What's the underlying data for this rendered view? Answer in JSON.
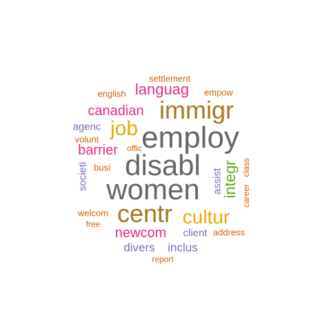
{
  "colors": {
    "gray": "#666666",
    "gold": "#A6761D",
    "magenta": "#E7298A",
    "yellow": "#E6AB02",
    "purple": "#7570B3",
    "orange": "#D95F02",
    "green": "#66A61E"
  },
  "words": [
    {
      "text": "settlement",
      "color": "orange"
    },
    {
      "text": "english",
      "color": "orange"
    },
    {
      "text": "languag",
      "color": "magenta"
    },
    {
      "text": "empow",
      "color": "orange"
    },
    {
      "text": "canadian",
      "color": "magenta"
    },
    {
      "text": "immigr",
      "color": "gold"
    },
    {
      "text": "agenc",
      "color": "purple"
    },
    {
      "text": "job",
      "color": "yellow"
    },
    {
      "text": "employ",
      "color": "gray"
    },
    {
      "text": "volunt",
      "color": "orange"
    },
    {
      "text": "barrier",
      "color": "magenta"
    },
    {
      "text": "offic",
      "color": "orange"
    },
    {
      "text": "societi",
      "color": "purple"
    },
    {
      "text": "busi",
      "color": "orange"
    },
    {
      "text": "disabl",
      "color": "gray"
    },
    {
      "text": "assist",
      "color": "purple"
    },
    {
      "text": "integr",
      "color": "green"
    },
    {
      "text": "career",
      "color": "orange"
    },
    {
      "text": "class",
      "color": "orange"
    },
    {
      "text": "women",
      "color": "gray"
    },
    {
      "text": "welcom",
      "color": "orange"
    },
    {
      "text": "centr",
      "color": "gold"
    },
    {
      "text": "cultur",
      "color": "yellow"
    },
    {
      "text": "free",
      "color": "orange"
    },
    {
      "text": "newcom",
      "color": "magenta"
    },
    {
      "text": "client",
      "color": "purple"
    },
    {
      "text": "address",
      "color": "orange"
    },
    {
      "text": "divers",
      "color": "purple"
    },
    {
      "text": "inclus",
      "color": "purple"
    },
    {
      "text": "report",
      "color": "orange"
    }
  ]
}
